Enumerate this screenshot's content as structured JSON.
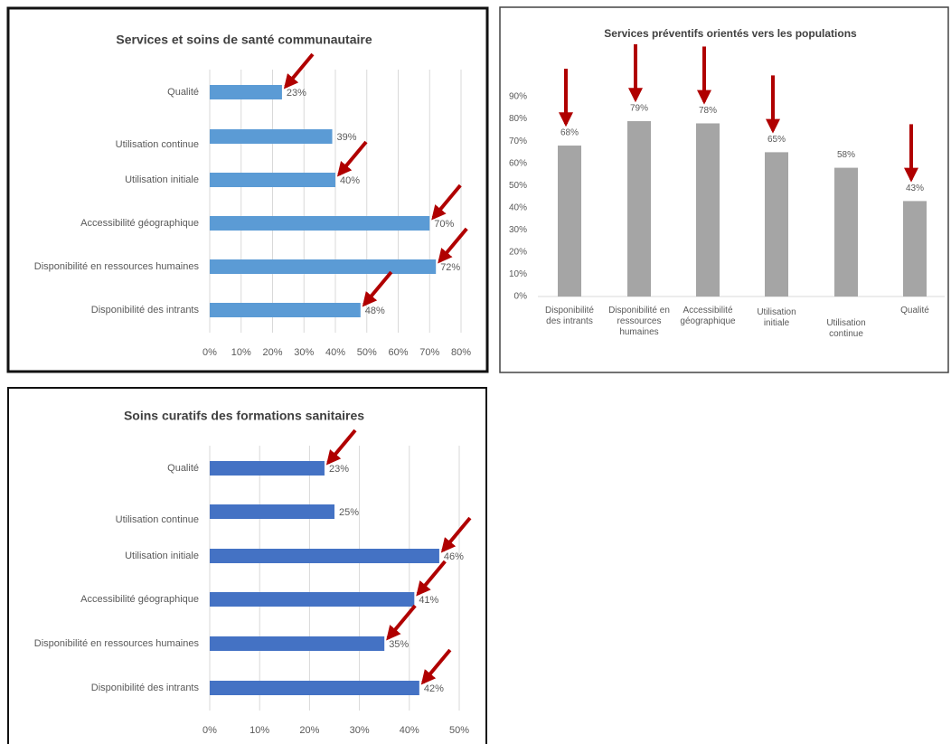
{
  "chart_data": [
    {
      "type": "barh",
      "title": "Services et soins de santé communautaire",
      "categories": [
        "Qualité",
        "Utilisation continue",
        "Utilisation initiale",
        "Accessibilité géographique",
        "Disponibilité en ressources humaines",
        "Disponibilité des intrants"
      ],
      "values": [
        23,
        39,
        40,
        70,
        72,
        48
      ],
      "value_labels": [
        "23%",
        "39%",
        "40%",
        "70%",
        "72%",
        "48%"
      ],
      "color": "#5b9bd5",
      "xlim": [
        0,
        80
      ],
      "xticks": [
        {
          "value": 0,
          "label": "0%"
        },
        {
          "value": 10,
          "label": "10%"
        },
        {
          "value": 20,
          "label": "20%"
        },
        {
          "value": 30,
          "label": "30%"
        },
        {
          "value": 40,
          "label": "40%"
        },
        {
          "value": 50,
          "label": "50%"
        },
        {
          "value": 60,
          "label": "60%"
        },
        {
          "value": 70,
          "label": "70%"
        },
        {
          "value": 80,
          "label": "80%"
        }
      ],
      "grid": true
    },
    {
      "type": "bar",
      "title": "Services préventifs orientés vers les populations",
      "categories": [
        "Disponibilité des intrants",
        "Disponibilité en ressources humaines",
        "Accessibilité géographique",
        "Utilisation initiale",
        "Utilisation continue",
        "Qualité"
      ],
      "values": [
        68,
        79,
        78,
        65,
        58,
        43
      ],
      "value_labels": [
        "68%",
        "79%",
        "78%",
        "65%",
        "58%",
        "43%"
      ],
      "color": "#a5a5a5",
      "ylim": [
        0,
        90
      ],
      "yticks": [
        {
          "value": 0,
          "label": "0%"
        },
        {
          "value": 10,
          "label": "10%"
        },
        {
          "value": 20,
          "label": "20%"
        },
        {
          "value": 30,
          "label": "30%"
        },
        {
          "value": 40,
          "label": "40%"
        },
        {
          "value": 50,
          "label": "50%"
        },
        {
          "value": 60,
          "label": "60%"
        },
        {
          "value": 70,
          "label": "70%"
        },
        {
          "value": 80,
          "label": "80%"
        },
        {
          "value": 90,
          "label": "90%"
        }
      ],
      "grid": false
    },
    {
      "type": "barh",
      "title": "Soins curatifs des formations sanitaires",
      "categories": [
        "Qualité",
        "Utilisation continue",
        "Utilisation initiale",
        "Accessibilité géographique",
        "Disponibilité en ressources humaines",
        "Disponibilité des intrants"
      ],
      "values": [
        23,
        25,
        46,
        41,
        35,
        42
      ],
      "value_labels": [
        "23%",
        "25%",
        "46%",
        "41%",
        "35%",
        "42%"
      ],
      "color": "#4472c4",
      "xlim": [
        0,
        50
      ],
      "xticks": [
        {
          "value": 0,
          "label": "0%"
        },
        {
          "value": 10,
          "label": "10%"
        },
        {
          "value": 20,
          "label": "20%"
        },
        {
          "value": 30,
          "label": "30%"
        },
        {
          "value": 40,
          "label": "40%"
        },
        {
          "value": 50,
          "label": "50%"
        }
      ],
      "grid": true
    }
  ]
}
